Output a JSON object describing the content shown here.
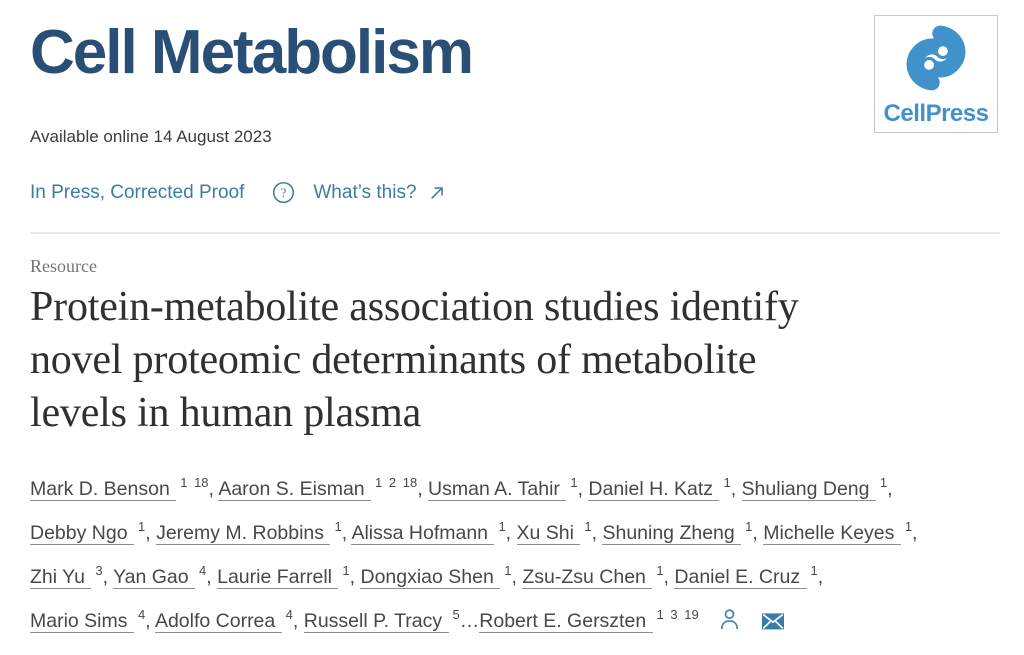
{
  "journal": {
    "name": "Cell Metabolism"
  },
  "logo": {
    "text": "CellPress"
  },
  "meta": {
    "available_online": "Available online 14 August 2023"
  },
  "status": {
    "in_press_label": "In Press, Corrected Proof",
    "whats_this_label": "What’s this?"
  },
  "article": {
    "type_label": "Resource",
    "title": "Protein-metabolite association studies identify novel proteomic determinants of metabolite levels in human plasma",
    "title_lines": [
      "Protein-metabolite association studies identify",
      "novel proteomic determinants of metabolite",
      "levels in human plasma"
    ]
  },
  "authors": {
    "lines": [
      [
        {
          "name": "Mark D. Benson",
          "sups": "1 18"
        },
        {
          "name": "Aaron S. Eisman",
          "sups": "1 2 18"
        },
        {
          "name": "Usman A. Tahir",
          "sups": "1"
        },
        {
          "name": "Daniel H. Katz",
          "sups": "1"
        },
        {
          "name": "Shuliang Deng",
          "sups": "1"
        }
      ],
      [
        {
          "name": "Debby Ngo",
          "sups": "1"
        },
        {
          "name": "Jeremy M. Robbins",
          "sups": "1"
        },
        {
          "name": "Alissa Hofmann",
          "sups": "1"
        },
        {
          "name": "Xu Shi",
          "sups": "1"
        },
        {
          "name": "Shuning Zheng",
          "sups": "1"
        },
        {
          "name": "Michelle Keyes",
          "sups": "1"
        }
      ],
      [
        {
          "name": "Zhi Yu",
          "sups": "3"
        },
        {
          "name": "Yan Gao",
          "sups": "4"
        },
        {
          "name": "Laurie Farrell",
          "sups": "1"
        },
        {
          "name": "Dongxiao Shen",
          "sups": "1"
        },
        {
          "name": "Zsu-Zsu Chen",
          "sups": "1"
        },
        {
          "name": "Daniel E. Cruz",
          "sups": "1"
        }
      ],
      [
        {
          "name": "Mario Sims",
          "sups": "4"
        },
        {
          "name": "Adolfo Correa",
          "sups": "4"
        },
        {
          "name": "Russell P. Tracy",
          "sups": "5",
          "sep": "…"
        },
        {
          "name": "Robert E. Gerszten",
          "sups": "1 3 19",
          "sep": ""
        }
      ]
    ],
    "icons": [
      "person-icon",
      "envelope-icon"
    ]
  },
  "colors": {
    "journal_blue": "#294f77",
    "cellpress_blue": "#4191cb",
    "link_blue": "#3a7ca6",
    "title_text": "#303030",
    "body_text": "#484848",
    "divider": "#e8e8e8"
  }
}
